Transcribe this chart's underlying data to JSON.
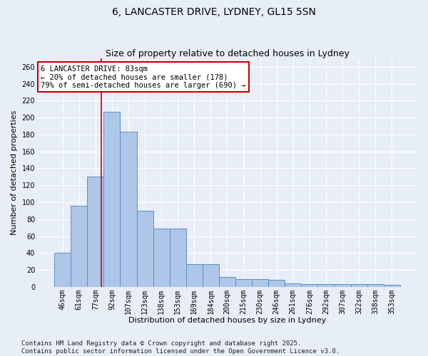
{
  "title": "6, LANCASTER DRIVE, LYDNEY, GL15 5SN",
  "subtitle": "Size of property relative to detached houses in Lydney",
  "xlabel": "Distribution of detached houses by size in Lydney",
  "ylabel": "Number of detached properties",
  "categories": [
    "46sqm",
    "61sqm",
    "77sqm",
    "92sqm",
    "107sqm",
    "123sqm",
    "138sqm",
    "153sqm",
    "169sqm",
    "184sqm",
    "200sqm",
    "215sqm",
    "230sqm",
    "246sqm",
    "261sqm",
    "276sqm",
    "292sqm",
    "307sqm",
    "322sqm",
    "338sqm",
    "353sqm"
  ],
  "values": [
    40,
    96,
    130,
    207,
    183,
    90,
    69,
    69,
    27,
    27,
    12,
    9,
    9,
    8,
    4,
    3,
    3,
    3,
    3,
    3,
    2
  ],
  "bar_color": "#aec6e8",
  "bar_edge_color": "#5a8fc2",
  "background_color": "#e8eef8",
  "grid_color": "#ffffff",
  "vline_color": "#cc0000",
  "vline_pos": 2.37,
  "annotation_text": "6 LANCASTER DRIVE: 83sqm\n← 20% of detached houses are smaller (178)\n79% of semi-detached houses are larger (690) →",
  "annotation_box_color": "#ffffff",
  "annotation_box_edge_color": "#cc0000",
  "footer_line1": "Contains HM Land Registry data © Crown copyright and database right 2025.",
  "footer_line2": "Contains public sector information licensed under the Open Government Licence v3.0.",
  "ylim": [
    0,
    270
  ],
  "yticks": [
    0,
    20,
    40,
    60,
    80,
    100,
    120,
    140,
    160,
    180,
    200,
    220,
    240,
    260
  ],
  "title_fontsize": 10,
  "subtitle_fontsize": 9,
  "ylabel_fontsize": 8,
  "xlabel_fontsize": 8,
  "tick_fontsize": 7,
  "annotation_fontsize": 7.5,
  "footer_fontsize": 6.5
}
